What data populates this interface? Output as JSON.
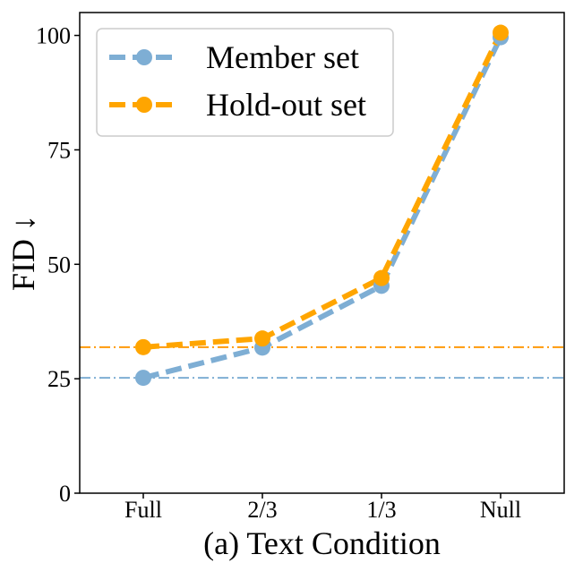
{
  "chart_data": {
    "type": "line",
    "title": "",
    "xlabel": "(a) Text Condition",
    "ylabel": "FID ↓",
    "categories": [
      "Full",
      "2/3",
      "1/3",
      "Null"
    ],
    "ylim": [
      0,
      105
    ],
    "yticks": [
      0,
      25,
      50,
      75,
      100
    ],
    "grid": false,
    "legend_position": "top-left",
    "series": [
      {
        "name": "Member set",
        "values": [
          25.2,
          31.8,
          45.3,
          99.6
        ],
        "color": "#7eaed4",
        "line_style": "dashed",
        "marker": "circle"
      },
      {
        "name": "Hold-out set",
        "values": [
          31.9,
          33.8,
          47.0,
          100.6
        ],
        "color": "#ffa500",
        "line_style": "dashed",
        "marker": "circle"
      }
    ],
    "reference_lines": [
      {
        "series": "Member set",
        "y": 25.2,
        "color": "#7eaed4",
        "line_style": "dashdot"
      },
      {
        "series": "Hold-out set",
        "y": 31.9,
        "color": "#ff9a0a",
        "line_style": "dashdot"
      }
    ]
  }
}
